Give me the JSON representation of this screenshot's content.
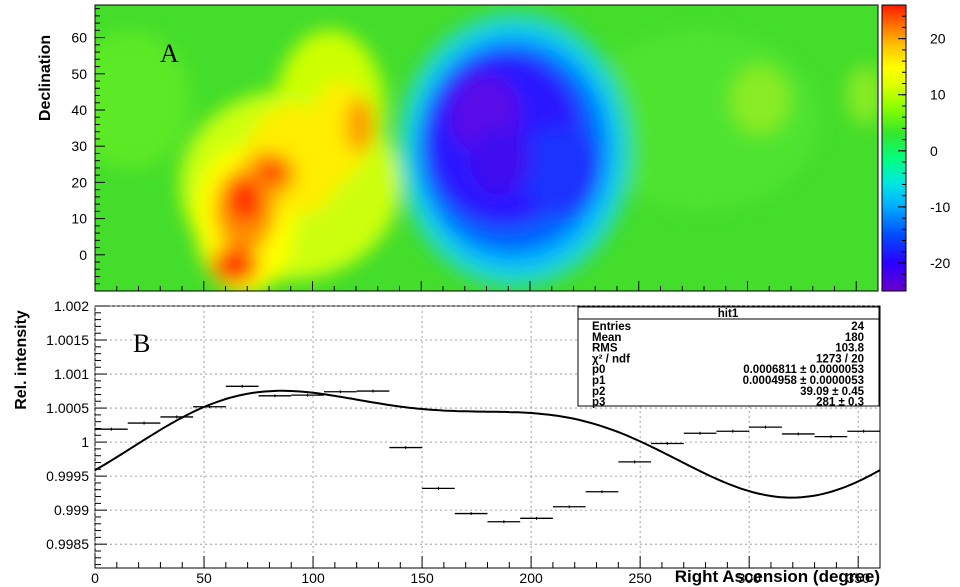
{
  "chart_data": [
    {
      "type": "heatmap",
      "panel_label": "A",
      "ylabel": "Declination",
      "x_range": [
        0,
        360
      ],
      "ylim": [
        -10,
        69
      ],
      "y_ticks": [
        0,
        10,
        20,
        30,
        40,
        50,
        60
      ],
      "colorbar": {
        "range": [
          -25,
          26
        ],
        "ticks": [
          20,
          10,
          0,
          -10,
          -20
        ],
        "palette": [
          "#6a00cc",
          "#2a00ff",
          "#0044ff",
          "#00aaff",
          "#00e6e6",
          "#00ff80",
          "#33e62e",
          "#80ff00",
          "#ccff00",
          "#ffff00",
          "#ffc000",
          "#ff7a00",
          "#ff2a00"
        ]
      },
      "features": [
        {
          "kind": "excess",
          "ra": 65,
          "dec": 16,
          "value": 24
        },
        {
          "kind": "excess",
          "ra": 67,
          "dec": 0,
          "value": 24
        },
        {
          "kind": "excess",
          "ra": 80,
          "dec": 23,
          "value": 22
        },
        {
          "kind": "excess",
          "ra": 118,
          "dec": 37,
          "value": 16
        },
        {
          "kind": "excess",
          "ra": 110,
          "dec": 44,
          "value": 10
        },
        {
          "kind": "deficit",
          "ra": 185,
          "dec": 30,
          "value": -24
        },
        {
          "kind": "deficit",
          "ra": 205,
          "dec": 20,
          "value": -18
        },
        {
          "kind": "excess",
          "ra": 300,
          "dec": 40,
          "value": 6
        },
        {
          "kind": "excess",
          "ra": 352,
          "dec": 44,
          "value": 6
        }
      ]
    },
    {
      "type": "line",
      "panel_label": "B",
      "xlabel": "Right Ascension (degree)",
      "ylabel": "Rel. intensity",
      "xlim": [
        0,
        360
      ],
      "ylim": [
        0.99815,
        1.002
      ],
      "x_ticks": [
        0,
        50,
        100,
        150,
        200,
        250,
        300,
        350
      ],
      "y_ticks": [
        0.9985,
        0.999,
        0.9995,
        1,
        1.0005,
        1.001,
        1.0015,
        1.002
      ],
      "y_tick_labels": [
        "0.9985",
        "0.999",
        "0.9995",
        "1",
        "1.0005",
        "1.001",
        "1.0015",
        "1.002"
      ],
      "grid": true,
      "bin_width": 15,
      "x": [
        7.5,
        22.5,
        37.5,
        52.5,
        67.5,
        82.5,
        97.5,
        112.5,
        127.5,
        142.5,
        157.5,
        172.5,
        187.5,
        202.5,
        217.5,
        232.5,
        247.5,
        262.5,
        277.5,
        292.5,
        307.5,
        322.5,
        337.5,
        352.5
      ],
      "values": [
        1.00019,
        1.00028,
        1.00037,
        1.00052,
        1.00082,
        1.00068,
        1.00069,
        1.00074,
        1.00075,
        0.99992,
        0.99932,
        0.99895,
        0.99883,
        0.99888,
        0.99905,
        0.99927,
        0.99971,
        0.99998,
        1.00013,
        1.00016,
        1.00022,
        1.00012,
        1.00008,
        1.00016
      ],
      "fit": {
        "p0": 0.0006811,
        "p1": 0.0004958,
        "p2": 39.09,
        "p3": 281
      },
      "stats_box": {
        "title": "hit1",
        "rows": [
          {
            "label": "Entries",
            "value": "24"
          },
          {
            "label": "Mean",
            "value": "180"
          },
          {
            "label": "RMS",
            "value": "103.8"
          },
          {
            "label": "χ² / ndf",
            "value": "1273 / 20"
          },
          {
            "label": "p0",
            "value": "0.0006811 ± 0.0000053"
          },
          {
            "label": "p1",
            "value": "0.0004958 ± 0.0000053"
          },
          {
            "label": "p2",
            "value": "39.09 ± 0.45"
          },
          {
            "label": "p3",
            "value": "281 ± 0.3"
          }
        ]
      }
    }
  ]
}
